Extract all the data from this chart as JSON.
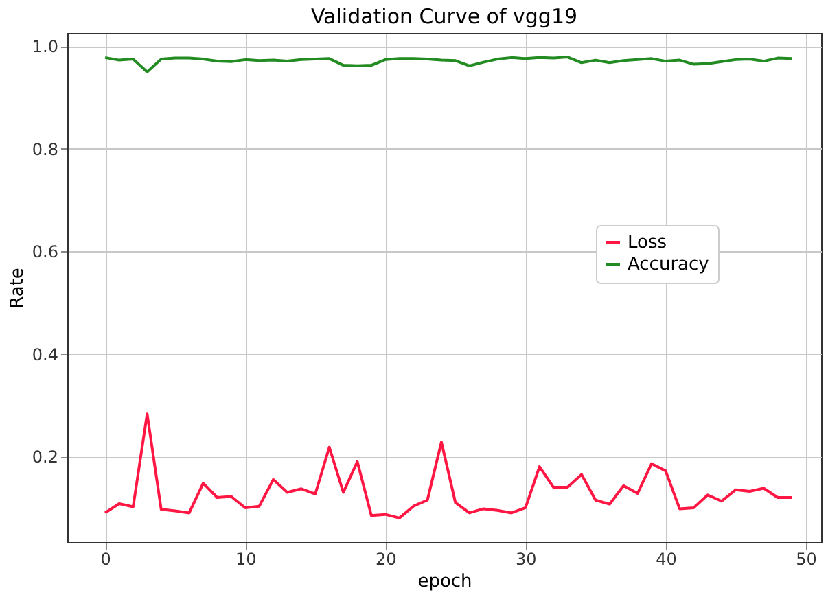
{
  "chart_data": {
    "type": "line",
    "title": "Validation Curve of vgg19",
    "xlabel": "epoch",
    "ylabel": "Rate",
    "x": [
      0,
      1,
      2,
      3,
      4,
      5,
      6,
      7,
      8,
      9,
      10,
      11,
      12,
      13,
      14,
      15,
      16,
      17,
      18,
      19,
      20,
      21,
      22,
      23,
      24,
      25,
      26,
      27,
      28,
      29,
      30,
      31,
      32,
      33,
      34,
      35,
      36,
      37,
      38,
      39,
      40,
      41,
      42,
      43,
      44,
      45,
      46,
      47,
      48,
      49
    ],
    "series": [
      {
        "name": "Loss",
        "color": "#ff1744",
        "values": [
          0.09,
          0.108,
          0.102,
          0.283,
          0.097,
          0.094,
          0.09,
          0.148,
          0.12,
          0.122,
          0.1,
          0.103,
          0.155,
          0.13,
          0.137,
          0.127,
          0.218,
          0.13,
          0.19,
          0.085,
          0.087,
          0.08,
          0.103,
          0.115,
          0.228,
          0.11,
          0.09,
          0.098,
          0.095,
          0.09,
          0.1,
          0.18,
          0.14,
          0.14,
          0.165,
          0.115,
          0.107,
          0.143,
          0.128,
          0.186,
          0.172,
          0.098,
          0.1,
          0.125,
          0.113,
          0.135,
          0.132,
          0.138,
          0.12,
          0.12
        ]
      },
      {
        "name": "Accuracy",
        "color": "#228b22",
        "values": [
          0.978,
          0.973,
          0.975,
          0.95,
          0.975,
          0.977,
          0.977,
          0.975,
          0.971,
          0.97,
          0.974,
          0.972,
          0.973,
          0.971,
          0.974,
          0.975,
          0.976,
          0.963,
          0.962,
          0.963,
          0.974,
          0.976,
          0.976,
          0.975,
          0.973,
          0.972,
          0.962,
          0.969,
          0.975,
          0.978,
          0.976,
          0.978,
          0.977,
          0.979,
          0.968,
          0.973,
          0.968,
          0.972,
          0.974,
          0.976,
          0.971,
          0.973,
          0.965,
          0.966,
          0.97,
          0.974,
          0.975,
          0.971,
          0.977,
          0.976
        ]
      }
    ],
    "xlim": [
      -2.7,
      51.1
    ],
    "ylim": [
      0.033,
      1.026
    ],
    "xticks": [
      0,
      10,
      20,
      30,
      40,
      50
    ],
    "yticks": [
      0.2,
      0.4,
      0.6,
      0.8,
      {
        "value": 1,
        "label": "1.0"
      }
    ],
    "grid": true,
    "legend": "right",
    "marker": "none",
    "line_style": "solid"
  }
}
